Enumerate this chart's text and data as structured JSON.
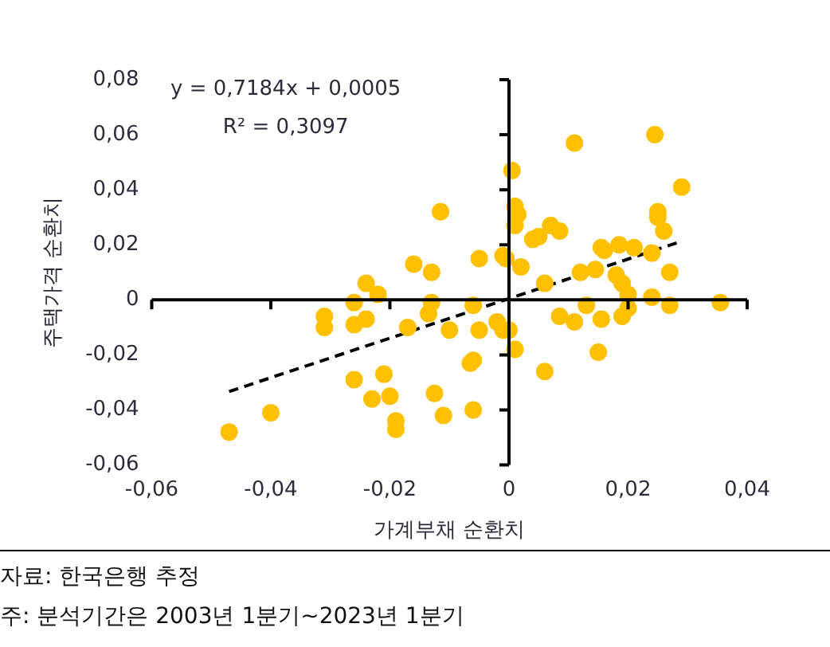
{
  "chart_data": {
    "type": "scatter",
    "xlabel": "가계부채 순환치",
    "ylabel": "주택가격 순환치",
    "annotations": [
      "y = 0,7184x + 0,0005",
      "R² = 0,3097",
      "자료: 한국은행 추정",
      "주: 분석기간은 2003년 1분기~2023년 1분기"
    ],
    "xlim": [
      -0.06,
      0.04
    ],
    "ylim": [
      -0.06,
      0.08
    ],
    "xticks": [
      {
        "value": -0.06,
        "label": "-0,06"
      },
      {
        "value": -0.04,
        "label": "-0,04"
      },
      {
        "value": -0.02,
        "label": "-0,02"
      },
      0,
      {
        "value": 0.02,
        "label": "0,02"
      },
      {
        "value": 0.04,
        "label": "0,04"
      }
    ],
    "yticks": [
      {
        "value": -0.06,
        "label": "-0,06"
      },
      {
        "value": -0.04,
        "label": "-0,04"
      },
      {
        "value": -0.02,
        "label": "-0,02"
      },
      0,
      {
        "value": 0.02,
        "label": "0,02"
      },
      {
        "value": 0.04,
        "label": "0,04"
      },
      {
        "value": 0.06,
        "label": "0,06"
      },
      {
        "value": 0.08,
        "label": "0,08"
      }
    ],
    "legend": false,
    "marker": "circle",
    "series": [
      {
        "type": "scatter",
        "color": "#ffc000",
        "x": [
          -0.047,
          -0.04,
          -0.031,
          -0.031,
          -0.026,
          -0.026,
          -0.024,
          -0.024,
          -0.022,
          -0.026,
          -0.021,
          -0.023,
          -0.02,
          -0.019,
          -0.019,
          -0.017,
          -0.016,
          -0.013,
          -0.013,
          -0.0135,
          -0.0115,
          -0.0125,
          -0.011,
          -0.006,
          -0.01,
          -0.005,
          -0.002,
          -0.001,
          0.0,
          0.001,
          -0.0065,
          -0.006,
          -0.006,
          0.006,
          0.0085,
          0.011,
          0.013,
          0.0155,
          0.015,
          0.019,
          0.02,
          0.02,
          0.024,
          0.027,
          0.0355,
          -0.005,
          -0.001,
          -0.0005,
          0.002,
          0.0005,
          0.001,
          0.0015,
          0.001,
          0.004,
          0.005,
          0.007,
          0.0085,
          0.011,
          0.006,
          0.012,
          0.0145,
          0.0155,
          0.016,
          0.018,
          0.019,
          0.0185,
          0.021,
          0.024,
          0.026,
          0.025,
          0.025,
          0.0245,
          0.029,
          0.027
        ],
        "values": [
          -0.048,
          -0.041,
          -0.006,
          -0.01,
          -0.001,
          -0.009,
          -0.007,
          0.006,
          0.002,
          -0.029,
          -0.027,
          -0.036,
          -0.035,
          -0.044,
          -0.047,
          -0.01,
          0.013,
          0.01,
          -0.001,
          -0.005,
          0.032,
          -0.034,
          -0.042,
          -0.002,
          -0.011,
          -0.011,
          -0.008,
          -0.011,
          -0.011,
          -0.018,
          -0.023,
          -0.022,
          -0.04,
          -0.026,
          -0.006,
          -0.008,
          -0.002,
          -0.007,
          -0.019,
          -0.006,
          -0.003,
          0.002,
          0.001,
          -0.002,
          -0.001,
          0.015,
          0.016,
          0.015,
          0.012,
          0.047,
          0.034,
          0.031,
          0.027,
          0.022,
          0.023,
          0.027,
          0.025,
          0.057,
          0.006,
          0.01,
          0.011,
          0.019,
          0.018,
          0.009,
          0.006,
          0.02,
          0.019,
          0.017,
          0.025,
          0.032,
          0.03,
          0.06,
          0.041,
          0.01
        ]
      },
      {
        "type": "line",
        "color": "#000000",
        "line_style": "dashed",
        "marker": "none",
        "x": [
          -0.047,
          0.029
        ],
        "values": [
          -0.0333,
          0.0213
        ]
      }
    ]
  }
}
